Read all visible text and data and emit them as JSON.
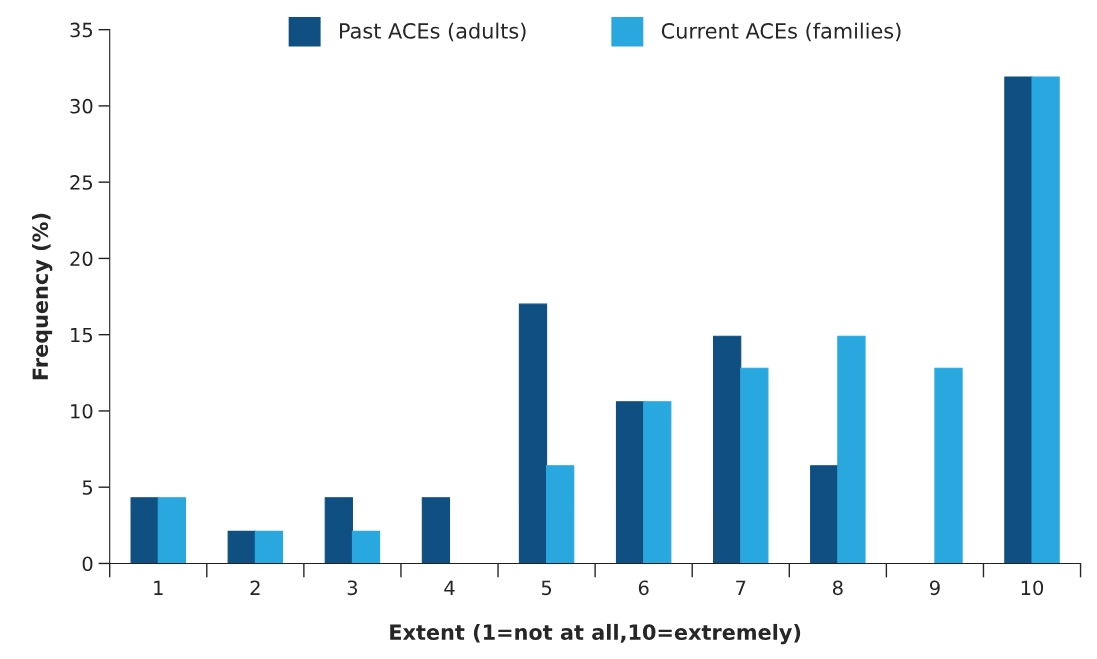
{
  "chart_data": {
    "type": "bar",
    "xlabel": "Extent (1=not at all,10=extremely)",
    "ylabel": "Frequency (%)",
    "categories": [
      "1",
      "2",
      "3",
      "4",
      "5",
      "6",
      "7",
      "8",
      "9",
      "10"
    ],
    "series": [
      {
        "name": "Past ACEs (adults)",
        "color": "#0f4f82",
        "values": [
          4.3,
          2.1,
          4.3,
          4.3,
          17.0,
          10.6,
          14.9,
          6.4,
          0,
          31.9
        ]
      },
      {
        "name": "Current ACEs (families)",
        "color": "#29a8e0",
        "values": [
          4.3,
          2.1,
          2.1,
          0,
          6.4,
          10.6,
          12.8,
          14.9,
          12.8,
          31.9
        ]
      }
    ],
    "ylim": [
      0,
      35
    ],
    "yticks": [
      0,
      5,
      10,
      15,
      20,
      25,
      30,
      35
    ],
    "grid": false,
    "legend": "top"
  }
}
